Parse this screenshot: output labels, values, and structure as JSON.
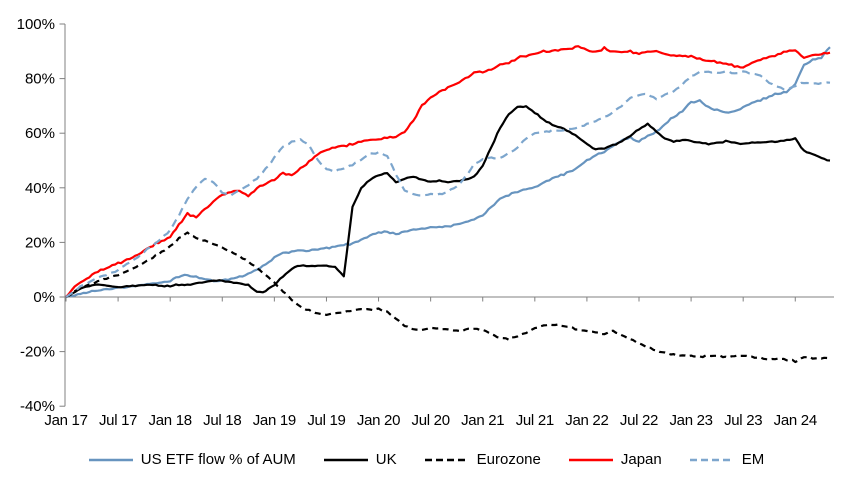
{
  "chart_data": {
    "type": "line",
    "title": "",
    "x_start": "2017-01",
    "x_step": "1 month",
    "n_points": 89,
    "x_tick_labels": [
      "Jan 17",
      "Jul 17",
      "Jan 18",
      "Jul 18",
      "Jan 19",
      "Jul 19",
      "Jan 20",
      "Jul 20",
      "Jan 21",
      "Jul 21",
      "Jan 22",
      "Jul 22",
      "Jan 23",
      "Jul 23",
      "Jan 24"
    ],
    "y_axis": {
      "ylim": [
        -40,
        100
      ],
      "tick_values": [
        100,
        80,
        60,
        40,
        20,
        0,
        -20,
        -40
      ],
      "tick_labels": [
        "100%",
        "80%",
        "60%",
        "40%",
        "20%",
        "0%",
        "-20%",
        "-40%"
      ],
      "grid": false,
      "zero_line": true
    },
    "legend_position": "bottom",
    "axis_color": "#808080",
    "series": [
      {
        "name": "US ETF flow % of AUM",
        "color": "#6794bf",
        "style": "solid",
        "values": [
          0,
          0.5,
          1.5,
          2,
          2.5,
          3,
          3.5,
          3.5,
          4,
          4.5,
          5,
          5.5,
          6,
          7.5,
          8,
          7.5,
          6.5,
          6,
          6,
          6.5,
          7.5,
          8.5,
          10,
          12,
          14.5,
          16,
          16.5,
          17,
          17,
          17.5,
          18,
          18.5,
          19,
          19.5,
          21,
          22.5,
          23.5,
          24,
          23,
          24,
          24.5,
          25,
          25.5,
          25.5,
          26,
          26.5,
          27.5,
          28.5,
          30,
          33,
          36,
          37.5,
          38.5,
          39.5,
          40,
          42,
          43.5,
          44.5,
          46,
          47.5,
          50,
          52,
          53,
          55.5,
          57.5,
          58.5,
          57,
          59,
          60.5,
          63.5,
          66,
          68,
          71.5,
          72,
          69.5,
          68.5,
          67.5,
          68,
          69.5,
          71,
          72,
          73.5,
          74.5,
          75,
          78,
          85,
          87,
          87.5,
          91.5
        ]
      },
      {
        "name": "UK",
        "color": "#000000",
        "style": "solid",
        "values": [
          0,
          2,
          3.5,
          4.5,
          4.5,
          4,
          3.5,
          4,
          4,
          4.5,
          4.5,
          4,
          4,
          4.5,
          4.5,
          5,
          5.5,
          6,
          6,
          5.5,
          5,
          4.5,
          2,
          2,
          4.5,
          7.5,
          10.5,
          11.5,
          11.5,
          11.5,
          11.5,
          11,
          7.5,
          33,
          40,
          43,
          44.5,
          45.5,
          42,
          43.5,
          44,
          43,
          42,
          42.5,
          42,
          42.5,
          43,
          44,
          48,
          55,
          62,
          67,
          69.5,
          70,
          67.5,
          65,
          63,
          62,
          60.5,
          58.5,
          56,
          54,
          54.5,
          55.5,
          57,
          59,
          61.5,
          63.5,
          60.5,
          58,
          57,
          57.5,
          57,
          56.5,
          56,
          56.5,
          57,
          56.5,
          56,
          56.5,
          56.5,
          57,
          57,
          57.5,
          58,
          53.5,
          52.5,
          51,
          50
        ]
      },
      {
        "name": "Eurozone",
        "color": "#000000",
        "style": "dashed",
        "values": [
          0,
          2,
          3.5,
          5,
          6,
          7,
          8,
          9.5,
          11,
          12.5,
          14.5,
          16.5,
          18.5,
          21.5,
          23.5,
          21.5,
          20.5,
          19.5,
          18,
          16.5,
          15,
          13,
          10.5,
          8,
          5.5,
          2,
          -1,
          -3.5,
          -5,
          -6,
          -6.5,
          -6,
          -5.5,
          -5,
          -4.5,
          -4.5,
          -4.5,
          -5.5,
          -8,
          -10.5,
          -12,
          -12,
          -11.5,
          -11.5,
          -12,
          -12.5,
          -12,
          -11.5,
          -12,
          -13.5,
          -15,
          -15.5,
          -14.5,
          -13,
          -11.5,
          -10.5,
          -10,
          -10.5,
          -11,
          -12,
          -12.5,
          -13,
          -13.5,
          -12.5,
          -14,
          -15.5,
          -17,
          -18.5,
          -19.5,
          -20.5,
          -21,
          -21.5,
          -21.5,
          -22,
          -21.5,
          -21.5,
          -22,
          -21.5,
          -21.5,
          -22,
          -22.5,
          -23,
          -22.5,
          -23,
          -23.5,
          -22,
          -22.5,
          -22.5,
          -22
        ]
      },
      {
        "name": "Japan",
        "color": "#fe0000",
        "style": "solid",
        "values": [
          0,
          4,
          6,
          8,
          10,
          11,
          12.5,
          13.5,
          15,
          17,
          19,
          20.5,
          22,
          26.5,
          30.5,
          29,
          32.5,
          35,
          37.5,
          38.5,
          39,
          37,
          40,
          41.5,
          43,
          45.5,
          44.5,
          47,
          49.5,
          52,
          54,
          55,
          55.5,
          56,
          57,
          57.5,
          58,
          58.5,
          58.5,
          60.5,
          64.5,
          70,
          73,
          75,
          77,
          78,
          80,
          82,
          82.5,
          83.5,
          85,
          86,
          87.5,
          88.5,
          89,
          90,
          90,
          90.5,
          91,
          92,
          90.5,
          89.5,
          91,
          90,
          89.5,
          90,
          89,
          89.5,
          90,
          89,
          88.5,
          88,
          88,
          87,
          86.5,
          86,
          85.5,
          84.5,
          84,
          85.5,
          87,
          88,
          89,
          90,
          90.5,
          87.5,
          88.5,
          89,
          89.5
        ]
      },
      {
        "name": "EM",
        "color": "#7da6cd",
        "style": "dashed",
        "values": [
          0,
          2.5,
          4.5,
          6,
          7.5,
          8.5,
          10,
          12,
          14,
          16.5,
          19,
          21.5,
          24.5,
          30,
          36,
          40.5,
          43.5,
          42,
          38,
          37.5,
          39,
          41,
          43.5,
          47,
          51,
          55,
          57,
          57.5,
          55.5,
          50,
          47,
          46,
          47,
          48.5,
          50.5,
          52.5,
          53,
          51.5,
          45,
          39,
          37.5,
          37,
          37.5,
          37.5,
          38.5,
          40.5,
          44,
          48.5,
          50.5,
          51,
          51,
          52.5,
          54.5,
          58,
          60,
          60.5,
          61,
          61,
          61.5,
          62,
          63.5,
          64.5,
          66,
          67.5,
          70,
          73,
          74,
          74.5,
          72.5,
          74,
          75,
          78,
          81,
          82.5,
          82.5,
          82,
          82.5,
          82,
          82.5,
          82,
          81,
          78.5,
          77,
          76,
          77.5,
          78.5,
          78,
          78.5,
          78.5
        ]
      }
    ]
  }
}
